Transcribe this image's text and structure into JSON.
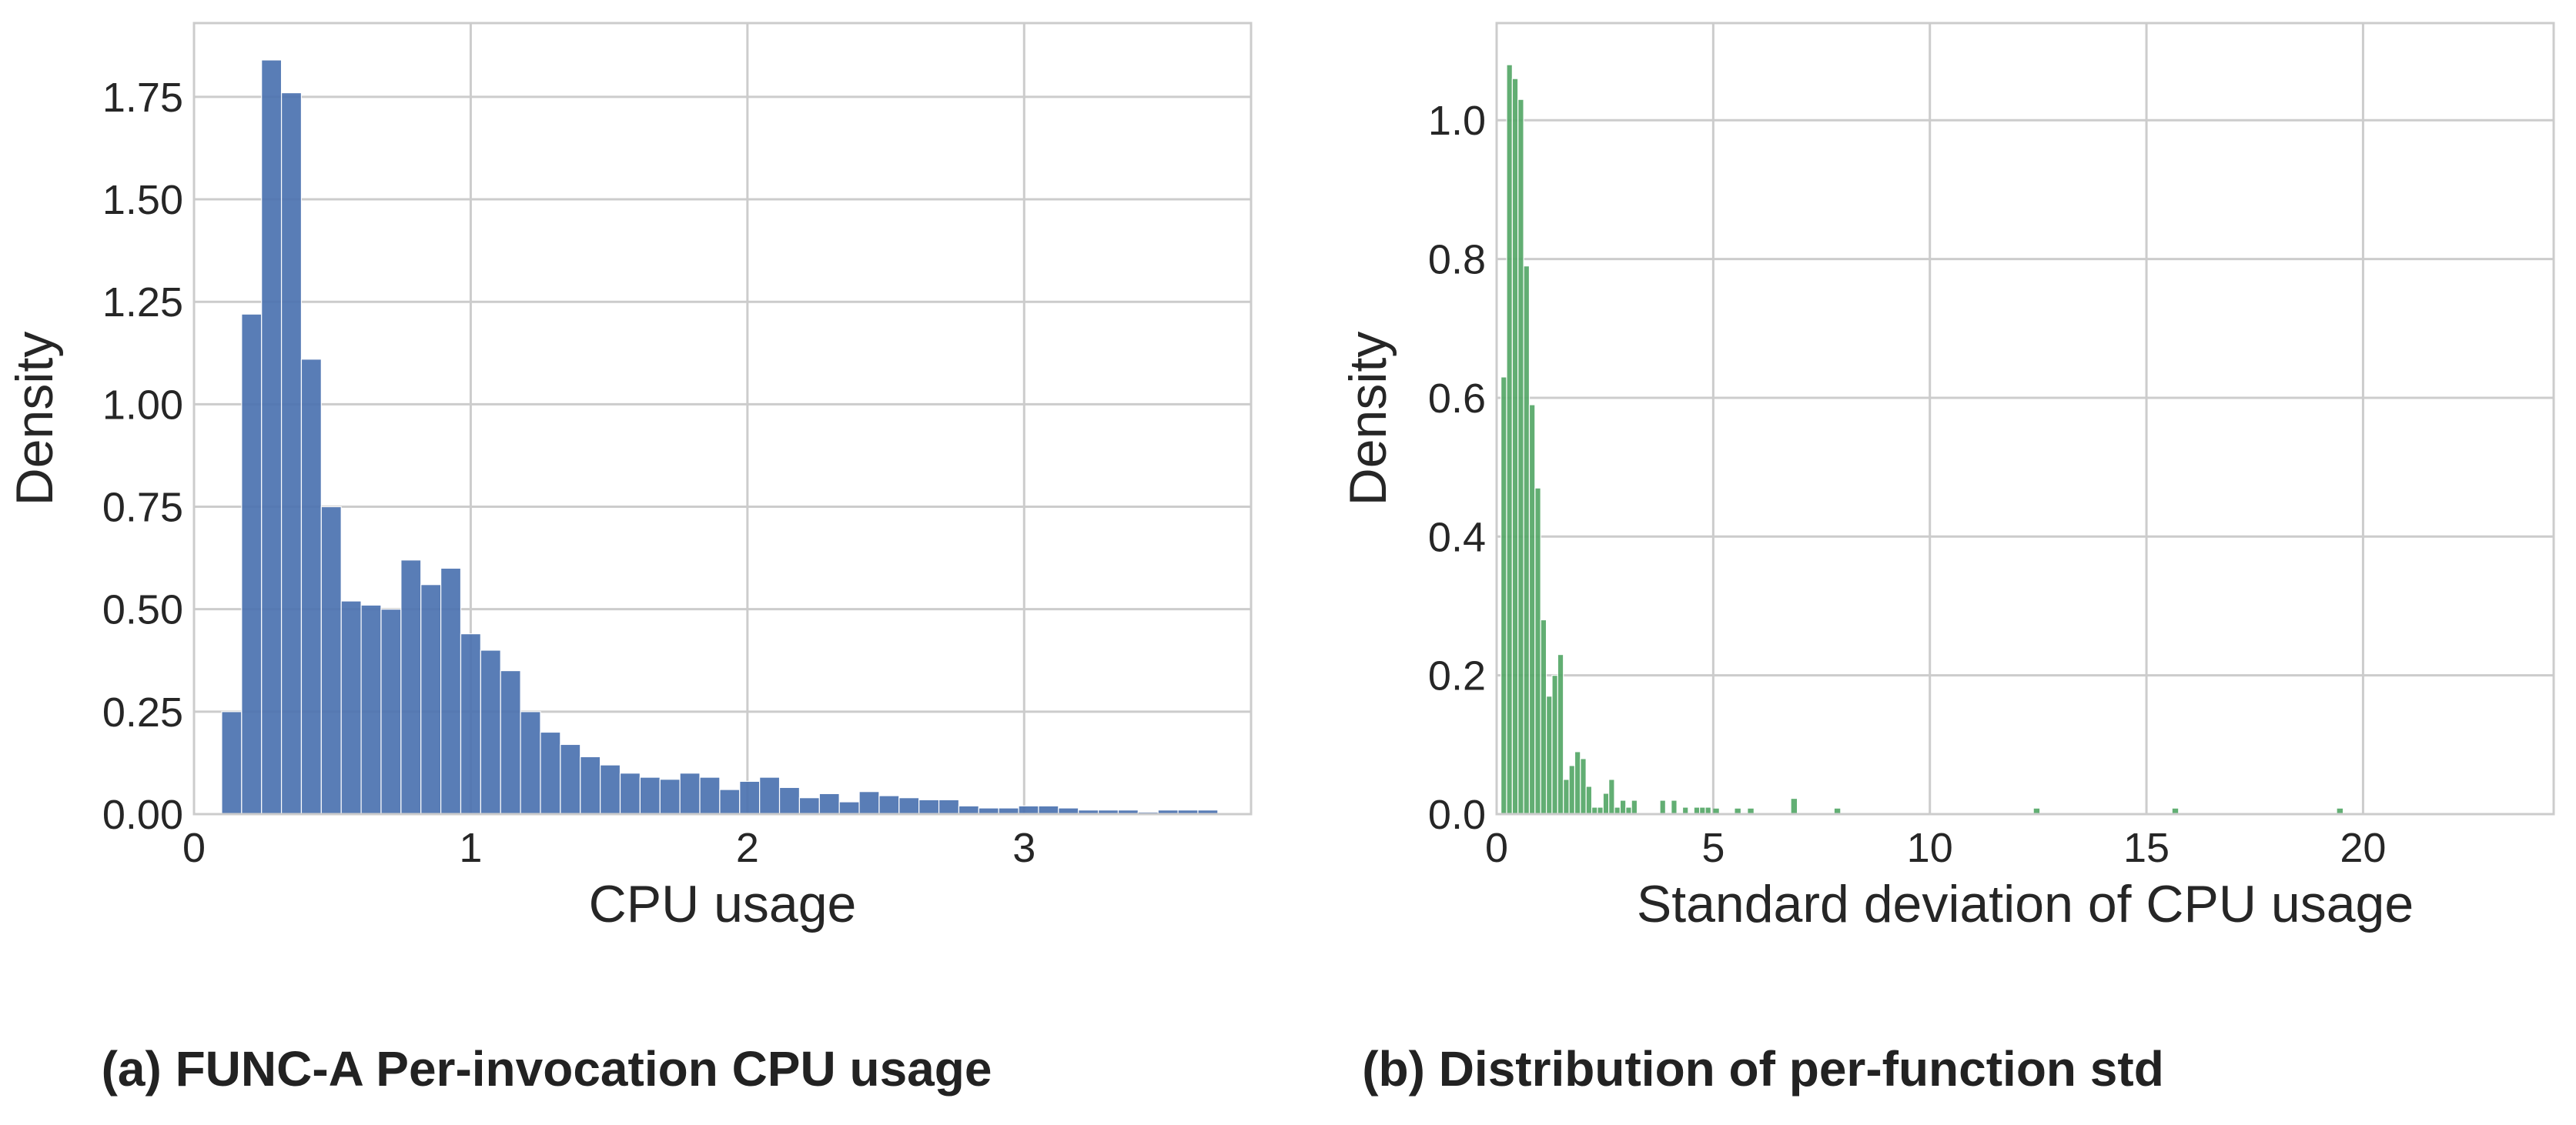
{
  "captions": {
    "a": "(a) FUNC-A Per-invocation CPU usage",
    "b": "(b) Distribution of per-function std"
  },
  "colors": {
    "bar_a": "#4c72b0",
    "bar_b": "#55a868",
    "grid": "#cccccc",
    "frame": "#cccccc"
  },
  "chart_data": [
    {
      "type": "bar",
      "title": "",
      "xlabel": "CPU usage",
      "ylabel": "Density",
      "xlim": [
        0,
        3.82
      ],
      "ylim": [
        0,
        1.93
      ],
      "xticks": [
        0,
        1,
        2,
        3
      ],
      "xtick_labels": [
        "0",
        "1",
        "2",
        "3"
      ],
      "yticks": [
        0,
        0.25,
        0.5,
        0.75,
        1.0,
        1.25,
        1.5,
        1.75
      ],
      "ytick_labels": [
        "0.00",
        "0.25",
        "0.50",
        "0.75",
        "1.00",
        "1.25",
        "1.50",
        "1.75"
      ],
      "grid": true,
      "bin_start": 0.1,
      "bin_width": 0.072,
      "values": [
        0.25,
        1.22,
        1.84,
        1.76,
        1.11,
        0.75,
        0.52,
        0.51,
        0.5,
        0.62,
        0.56,
        0.6,
        0.44,
        0.4,
        0.35,
        0.25,
        0.2,
        0.17,
        0.14,
        0.12,
        0.1,
        0.09,
        0.085,
        0.1,
        0.09,
        0.06,
        0.08,
        0.09,
        0.065,
        0.04,
        0.05,
        0.03,
        0.055,
        0.045,
        0.04,
        0.035,
        0.035,
        0.02,
        0.015,
        0.015,
        0.02,
        0.02,
        0.015,
        0.01,
        0.01,
        0.01,
        0.005,
        0.01,
        0.01,
        0.01
      ]
    },
    {
      "type": "bar",
      "title": "",
      "xlabel": "Standard deviation of CPU usage",
      "ylabel": "Density",
      "xlim": [
        0,
        24.4
      ],
      "ylim": [
        0,
        1.14
      ],
      "xticks": [
        0,
        5,
        10,
        15,
        20
      ],
      "xtick_labels": [
        "0",
        "5",
        "10",
        "15",
        "20"
      ],
      "yticks": [
        0,
        0.2,
        0.4,
        0.6,
        0.8,
        1.0
      ],
      "ytick_labels": [
        "0.0",
        "0.2",
        "0.4",
        "0.6",
        "0.8",
        "1.0"
      ],
      "grid": true,
      "bin_start": 0.1,
      "bin_width": 0.131,
      "values": [
        0.63,
        1.08,
        1.06,
        1.03,
        0.79,
        0.59,
        0.47,
        0.28,
        0.17,
        0.2,
        0.23,
        0.05,
        0.07,
        0.09,
        0.08,
        0.04,
        0.01,
        0.01,
        0.03,
        0.05,
        0.01,
        0.02,
        0.01,
        0.02,
        0.0,
        0.0,
        0.0,
        0.0,
        0.02,
        0.0,
        0.02,
        0.0,
        0.01,
        0.0,
        0.01,
        0.01,
        0.01,
        0.0,
        0.0,
        0.0,
        0.0,
        0.0,
        0.0,
        0.0,
        0.0,
        0.0,
        0.0,
        0.0,
        0.0,
        0.0,
        0.0,
        0.0,
        0.0,
        0.0,
        0.0,
        0.0,
        0.0,
        0.0,
        0.0,
        0.0
      ],
      "sparse_bars": [
        {
          "x": 5.0,
          "value": 0.008
        },
        {
          "x": 5.5,
          "value": 0.008
        },
        {
          "x": 5.8,
          "value": 0.008
        },
        {
          "x": 6.8,
          "value": 0.022
        },
        {
          "x": 7.8,
          "value": 0.008
        },
        {
          "x": 12.4,
          "value": 0.008
        },
        {
          "x": 15.6,
          "value": 0.008
        },
        {
          "x": 19.4,
          "value": 0.008
        }
      ]
    }
  ]
}
